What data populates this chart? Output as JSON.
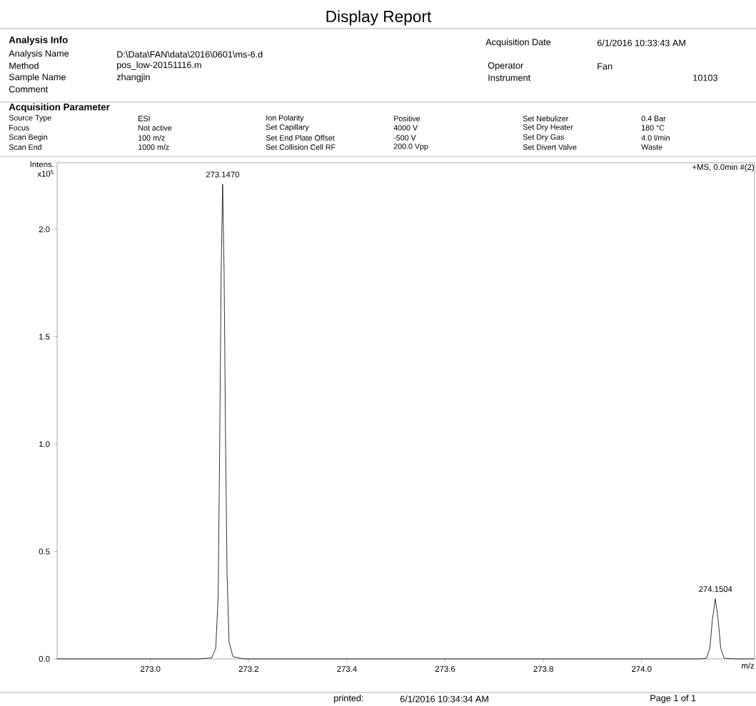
{
  "chart_data": {
    "type": "line",
    "title": "Display Report",
    "xlabel": "m/z",
    "ylabel": "Intens. x10$^{5}$",
    "x": [
      272.81,
      272.9,
      273.0,
      273.1,
      273.125,
      273.133,
      273.138,
      273.141,
      273.144,
      273.147,
      273.15,
      273.153,
      273.156,
      273.16,
      273.168,
      273.19,
      273.4,
      273.6,
      273.8,
      274.0,
      274.12,
      274.132,
      274.139,
      274.144,
      274.15,
      274.156,
      274.161,
      274.168,
      274.19,
      274.23
    ],
    "values": [
      0,
      0,
      0,
      0,
      0.005,
      0.05,
      0.3,
      1.0,
      1.8,
      2.21,
      1.8,
      1.0,
      0.4,
      0.08,
      0.01,
      0,
      0,
      0,
      0,
      0,
      0,
      0.003,
      0.05,
      0.18,
      0.28,
      0.18,
      0.05,
      0.003,
      0,
      0
    ],
    "color": "#000000",
    "xlim": [
      272.81,
      274.23
    ],
    "ylim": [
      0,
      2.31
    ],
    "xticks": [
      {
        "value": 273.0,
        "label": "273.0"
      },
      {
        "value": 273.2,
        "label": "273.2"
      },
      {
        "value": 273.4,
        "label": "273.4"
      },
      {
        "value": 273.6,
        "label": "273.6"
      },
      {
        "value": 273.8,
        "label": "273.8"
      },
      {
        "value": 274.0,
        "label": "274.0"
      }
    ],
    "yticks": [
      {
        "value": 0,
        "label": "0.0"
      },
      {
        "value": 0.5,
        "label": "0.5"
      },
      {
        "value": 1.0,
        "label": "1.0"
      },
      {
        "value": 1.5,
        "label": "1.5"
      },
      {
        "value": 2.0,
        "label": "2.0"
      }
    ],
    "grid": false,
    "annotations": [
      "Analysis Info",
      "Analysis Name",
      "D:\\Data\\FAN\\data\\2016\\0601\\ms-6.d",
      "Method",
      "pos_low-20151116.m",
      "Sample Name",
      "zhangjin",
      "Comment",
      "Acquisition Date",
      "6/1/2016 10:33:43 AM",
      "Operator",
      "Fan",
      "Instrument",
      "10103",
      "Acquisition Parameter",
      "Source Type",
      "ESI",
      "Focus",
      "Not active",
      "Scan Begin",
      "100 m/z",
      "Scan End",
      "1000 m/z",
      "Ion Polarity",
      "Positive",
      "Set Capillary",
      "4000 V",
      "Set End Plate Offset",
      "-500 V",
      "Set Collision Cell RF",
      "200.0 Vpp",
      "Set Nebulizer",
      "0.4 Bar",
      "Set Dry Heater",
      "180 °C",
      "Set Dry Gas",
      "4.0 l/min",
      "Set Divert Valve",
      "Waste",
      "+MS, 0.0min #(2)",
      "printed:",
      "6/1/2016 10:34:34 AM",
      "Page 1 of 1",
      {
        "text": "273.1470",
        "x": 273.147,
        "y": 2.21
      },
      {
        "text": "274.1504",
        "x": 274.1504,
        "y": 0.28
      }
    ]
  }
}
